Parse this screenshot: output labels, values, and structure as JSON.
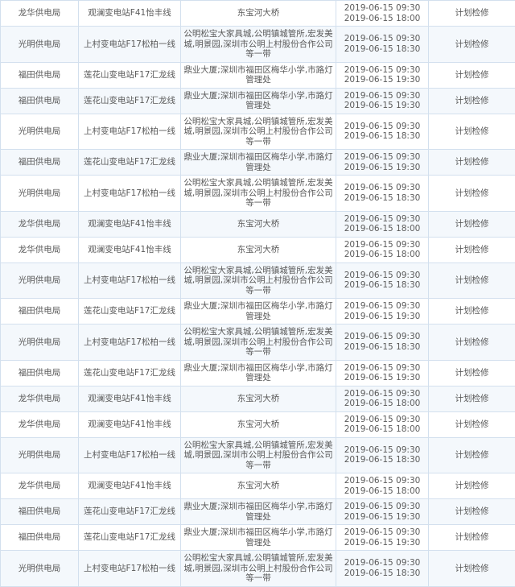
{
  "table": {
    "rows": [
      {
        "bureau": "龙华供电局",
        "line": "观澜变电站F41怡丰线",
        "area": "东宝河大桥",
        "start": "2019-06-15 09:30",
        "end": "2019-06-15 18:00",
        "type": "计划检修"
      },
      {
        "bureau": "光明供电局",
        "line": "上村变电站F17松柏一线",
        "area": "公明松宝大家具城,公明镇城管所,宏发美城,明景园,深圳市公明上村股份合作公司等一带",
        "start": "2019-06-15 09:30",
        "end": "2019-06-15 18:30",
        "type": "计划检修"
      },
      {
        "bureau": "福田供电局",
        "line": "莲花山变电站F17汇龙线",
        "area": "鼎业大厦;深圳市福田区梅华小学,市路灯管理处",
        "start": "2019-06-15 09:30",
        "end": "2019-06-15 19:30",
        "type": "计划检修"
      },
      {
        "bureau": "福田供电局",
        "line": "莲花山变电站F17汇龙线",
        "area": "鼎业大厦;深圳市福田区梅华小学,市路灯管理处",
        "start": "2019-06-15 09:30",
        "end": "2019-06-15 19:30",
        "type": "计划检修"
      },
      {
        "bureau": "光明供电局",
        "line": "上村变电站F17松柏一线",
        "area": "公明松宝大家具城,公明镇城管所,宏发美城,明景园,深圳市公明上村股份合作公司等一带",
        "start": "2019-06-15 09:30",
        "end": "2019-06-15 18:30",
        "type": "计划检修"
      },
      {
        "bureau": "福田供电局",
        "line": "莲花山变电站F17汇龙线",
        "area": "鼎业大厦;深圳市福田区梅华小学,市路灯管理处",
        "start": "2019-06-15 09:30",
        "end": "2019-06-15 19:30",
        "type": "计划检修"
      },
      {
        "bureau": "光明供电局",
        "line": "上村变电站F17松柏一线",
        "area": "公明松宝大家具城,公明镇城管所,宏发美城,明景园,深圳市公明上村股份合作公司等一带",
        "start": "2019-06-15 09:30",
        "end": "2019-06-15 18:30",
        "type": "计划检修"
      },
      {
        "bureau": "龙华供电局",
        "line": "观澜变电站F41怡丰线",
        "area": "东宝河大桥",
        "start": "2019-06-15 09:30",
        "end": "2019-06-15 18:00",
        "type": "计划检修"
      },
      {
        "bureau": "龙华供电局",
        "line": "观澜变电站F41怡丰线",
        "area": "东宝河大桥",
        "start": "2019-06-15 09:30",
        "end": "2019-06-15 18:00",
        "type": "计划检修"
      },
      {
        "bureau": "光明供电局",
        "line": "上村变电站F17松柏一线",
        "area": "公明松宝大家具城,公明镇城管所,宏发美城,明景园,深圳市公明上村股份合作公司等一带",
        "start": "2019-06-15 09:30",
        "end": "2019-06-15 18:30",
        "type": "计划检修"
      },
      {
        "bureau": "福田供电局",
        "line": "莲花山变电站F17汇龙线",
        "area": "鼎业大厦;深圳市福田区梅华小学,市路灯管理处",
        "start": "2019-06-15 09:30",
        "end": "2019-06-15 19:30",
        "type": "计划检修"
      },
      {
        "bureau": "光明供电局",
        "line": "上村变电站F17松柏一线",
        "area": "公明松宝大家具城,公明镇城管所,宏发美城,明景园,深圳市公明上村股份合作公司等一带",
        "start": "2019-06-15 09:30",
        "end": "2019-06-15 18:30",
        "type": "计划检修"
      },
      {
        "bureau": "福田供电局",
        "line": "莲花山变电站F17汇龙线",
        "area": "鼎业大厦;深圳市福田区梅华小学,市路灯管理处",
        "start": "2019-06-15 09:30",
        "end": "2019-06-15 19:30",
        "type": "计划检修"
      },
      {
        "bureau": "龙华供电局",
        "line": "观澜变电站F41怡丰线",
        "area": "东宝河大桥",
        "start": "2019-06-15 09:30",
        "end": "2019-06-15 18:00",
        "type": "计划检修"
      },
      {
        "bureau": "龙华供电局",
        "line": "观澜变电站F41怡丰线",
        "area": "东宝河大桥",
        "start": "2019-06-15 09:30",
        "end": "2019-06-15 18:00",
        "type": "计划检修"
      },
      {
        "bureau": "光明供电局",
        "line": "上村变电站F17松柏一线",
        "area": "公明松宝大家具城,公明镇城管所,宏发美城,明景园,深圳市公明上村股份合作公司等一带",
        "start": "2019-06-15 09:30",
        "end": "2019-06-15 18:30",
        "type": "计划检修"
      },
      {
        "bureau": "龙华供电局",
        "line": "观澜变电站F41怡丰线",
        "area": "东宝河大桥",
        "start": "2019-06-15 09:30",
        "end": "2019-06-15 18:00",
        "type": "计划检修"
      },
      {
        "bureau": "福田供电局",
        "line": "莲花山变电站F17汇龙线",
        "area": "鼎业大厦;深圳市福田区梅华小学,市路灯管理处",
        "start": "2019-06-15 09:30",
        "end": "2019-06-15 19:30",
        "type": "计划检修"
      },
      {
        "bureau": "福田供电局",
        "line": "莲花山变电站F17汇龙线",
        "area": "鼎业大厦;深圳市福田区梅华小学,市路灯管理处",
        "start": "2019-06-15 09:30",
        "end": "2019-06-15 19:30",
        "type": "计划检修"
      },
      {
        "bureau": "光明供电局",
        "line": "上村变电站F17松柏一线",
        "area": "公明松宝大家具城,公明镇城管所,宏发美城,明景园,深圳市公明上村股份合作公司等一带",
        "start": "2019-06-15 09:30",
        "end": "2019-06-15 18:30",
        "type": "计划检修"
      }
    ]
  },
  "colors": {
    "border": "#d3e0ee",
    "stripe": "#f4f8fc",
    "text": "#5a5a5a"
  }
}
